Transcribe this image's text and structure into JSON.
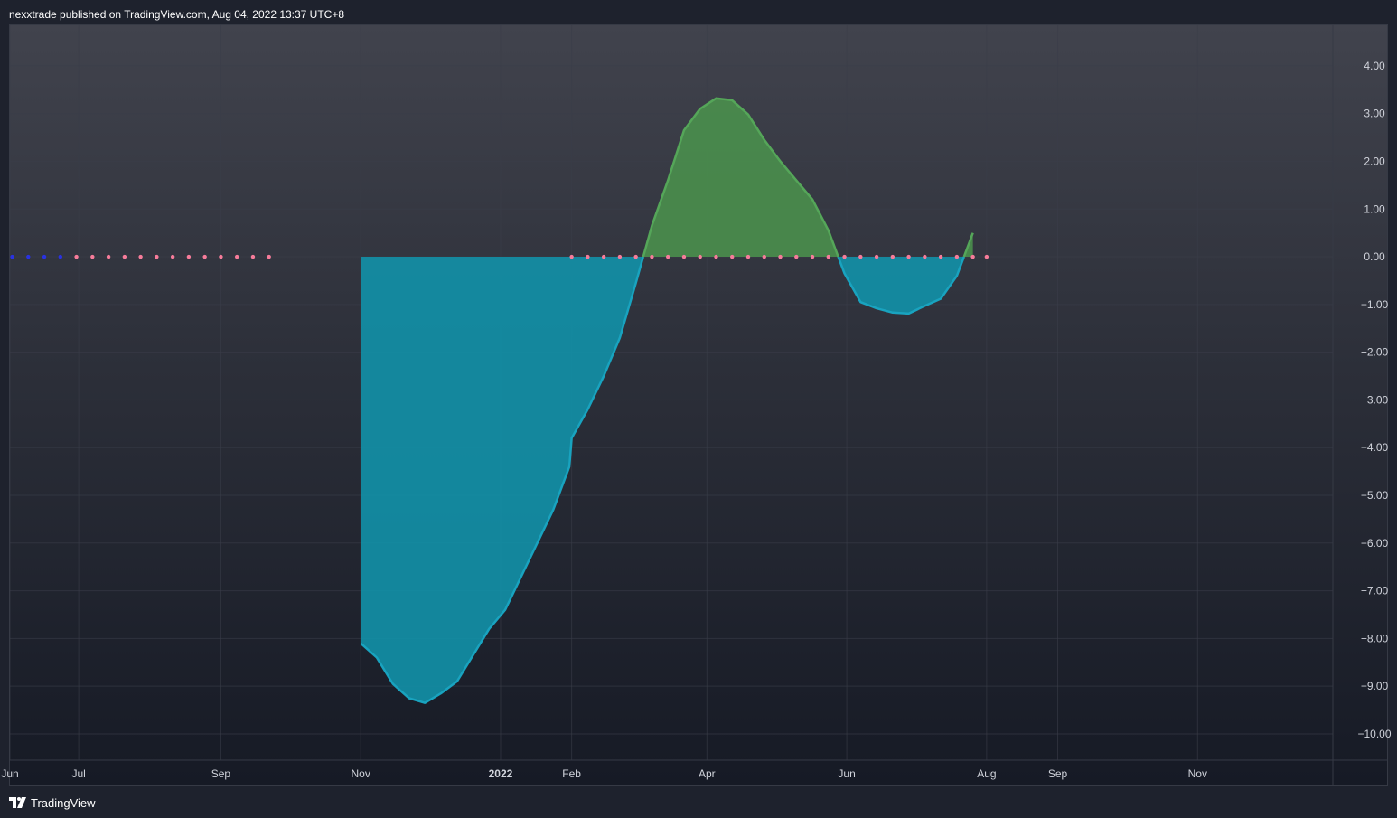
{
  "header": {
    "published_text": "nexxtrade published on TradingView.com, Aug 04, 2022 13:37 UTC+8"
  },
  "footer": {
    "brand": "TradingView",
    "logo_icon": "tradingview-logo-icon"
  },
  "colors": {
    "negative_fill": "#1291a8",
    "negative_line": "#19a3bf",
    "positive_fill": "#4a8f4c",
    "positive_line": "#55a659",
    "dot_pink": "#f77c9a",
    "dot_blue": "#2932e1",
    "grid": "#3a3e49",
    "text": "#d1d4dc"
  },
  "chart_data": {
    "type": "area",
    "x_axis": {
      "ticks": [
        {
          "label": "Jun",
          "date": "2021-06-01"
        },
        {
          "label": "Jul",
          "date": "2021-07-01"
        },
        {
          "label": "Sep",
          "date": "2021-09-01"
        },
        {
          "label": "Nov",
          "date": "2021-11-01"
        },
        {
          "label": "2022",
          "date": "2022-01-01",
          "bold": true
        },
        {
          "label": "Feb",
          "date": "2022-02-01"
        },
        {
          "label": "Apr",
          "date": "2022-04-01"
        },
        {
          "label": "Jun",
          "date": "2022-06-01"
        },
        {
          "label": "Aug",
          "date": "2022-08-01"
        },
        {
          "label": "Sep",
          "date": "2022-09-01"
        },
        {
          "label": "Nov",
          "date": "2022-11-01"
        }
      ],
      "range": [
        "2021-06-01",
        "2022-12-30"
      ]
    },
    "y_axis": {
      "ticks": [
        "4.00",
        "3.00",
        "2.00",
        "1.00",
        "0.00",
        "−1.00",
        "−2.00",
        "−3.00",
        "−4.00",
        "−5.00",
        "−6.00",
        "−7.00",
        "−8.00",
        "−9.00",
        "−10.00"
      ],
      "range": [
        -10.55,
        4.85
      ]
    },
    "grid": true,
    "series": [
      {
        "points": [
          [
            "2021-11-01",
            -8.1
          ],
          [
            "2021-11-08",
            -8.4
          ],
          [
            "2021-11-15",
            -8.95
          ],
          [
            "2021-11-22",
            -9.25
          ],
          [
            "2021-11-29",
            -9.35
          ],
          [
            "2021-12-06",
            -9.15
          ],
          [
            "2021-12-13",
            -8.9
          ],
          [
            "2021-12-20",
            -8.35
          ],
          [
            "2021-12-27",
            -7.8
          ],
          [
            "2022-01-03",
            -7.4
          ],
          [
            "2022-01-10",
            -6.7
          ],
          [
            "2022-01-17",
            -6.0
          ],
          [
            "2022-01-24",
            -5.3
          ],
          [
            "2022-01-31",
            -4.4
          ],
          [
            "2022-02-01",
            -3.8
          ],
          [
            "2022-02-08",
            -3.2
          ],
          [
            "2022-02-15",
            -2.5
          ],
          [
            "2022-02-22",
            -1.7
          ],
          [
            "2022-03-01",
            -0.55
          ],
          [
            "2022-03-08",
            0.65
          ],
          [
            "2022-03-15",
            1.6
          ],
          [
            "2022-03-22",
            2.65
          ],
          [
            "2022-03-29",
            3.1
          ],
          [
            "2022-04-05",
            3.32
          ],
          [
            "2022-04-12",
            3.28
          ],
          [
            "2022-04-19",
            2.98
          ],
          [
            "2022-04-26",
            2.45
          ],
          [
            "2022-05-03",
            2.0
          ],
          [
            "2022-05-10",
            1.6
          ],
          [
            "2022-05-17",
            1.2
          ],
          [
            "2022-05-24",
            0.55
          ],
          [
            "2022-05-31",
            -0.35
          ],
          [
            "2022-06-07",
            -0.95
          ],
          [
            "2022-06-14",
            -1.08
          ],
          [
            "2022-06-21",
            -1.17
          ],
          [
            "2022-06-28",
            -1.19
          ],
          [
            "2022-07-05",
            -1.03
          ],
          [
            "2022-07-12",
            -0.88
          ],
          [
            "2022-07-19",
            -0.4
          ],
          [
            "2022-07-26",
            0.5
          ]
        ]
      }
    ],
    "zero_dots": [
      {
        "date": "2021-06-02",
        "color": "blue"
      },
      {
        "date": "2021-06-09",
        "color": "blue"
      },
      {
        "date": "2021-06-16",
        "color": "blue"
      },
      {
        "date": "2021-06-23",
        "color": "blue"
      },
      {
        "date": "2021-06-30",
        "color": "pink"
      },
      {
        "date": "2021-07-07",
        "color": "pink"
      },
      {
        "date": "2021-07-14",
        "color": "pink"
      },
      {
        "date": "2021-07-21",
        "color": "pink"
      },
      {
        "date": "2021-07-28",
        "color": "pink"
      },
      {
        "date": "2021-08-04",
        "color": "pink"
      },
      {
        "date": "2021-08-11",
        "color": "pink"
      },
      {
        "date": "2021-08-18",
        "color": "pink"
      },
      {
        "date": "2021-08-25",
        "color": "pink"
      },
      {
        "date": "2021-09-01",
        "color": "pink"
      },
      {
        "date": "2021-09-08",
        "color": "pink"
      },
      {
        "date": "2021-09-15",
        "color": "pink"
      },
      {
        "date": "2021-09-22",
        "color": "pink"
      },
      {
        "date": "2022-02-01",
        "color": "pink"
      },
      {
        "date": "2022-02-08",
        "color": "pink"
      },
      {
        "date": "2022-02-15",
        "color": "pink"
      },
      {
        "date": "2022-02-22",
        "color": "pink"
      },
      {
        "date": "2022-03-01",
        "color": "pink"
      },
      {
        "date": "2022-03-08",
        "color": "pink"
      },
      {
        "date": "2022-03-15",
        "color": "pink"
      },
      {
        "date": "2022-03-22",
        "color": "pink"
      },
      {
        "date": "2022-03-29",
        "color": "pink"
      },
      {
        "date": "2022-04-05",
        "color": "pink"
      },
      {
        "date": "2022-04-12",
        "color": "pink"
      },
      {
        "date": "2022-04-19",
        "color": "pink"
      },
      {
        "date": "2022-04-26",
        "color": "pink"
      },
      {
        "date": "2022-05-03",
        "color": "pink"
      },
      {
        "date": "2022-05-10",
        "color": "pink"
      },
      {
        "date": "2022-05-17",
        "color": "pink"
      },
      {
        "date": "2022-05-24",
        "color": "pink"
      },
      {
        "date": "2022-05-31",
        "color": "pink"
      },
      {
        "date": "2022-06-07",
        "color": "pink"
      },
      {
        "date": "2022-06-14",
        "color": "pink"
      },
      {
        "date": "2022-06-21",
        "color": "pink"
      },
      {
        "date": "2022-06-28",
        "color": "pink"
      },
      {
        "date": "2022-07-05",
        "color": "pink"
      },
      {
        "date": "2022-07-12",
        "color": "pink"
      },
      {
        "date": "2022-07-19",
        "color": "pink"
      },
      {
        "date": "2022-07-26",
        "color": "pink"
      },
      {
        "date": "2022-08-01",
        "color": "pink"
      }
    ]
  }
}
